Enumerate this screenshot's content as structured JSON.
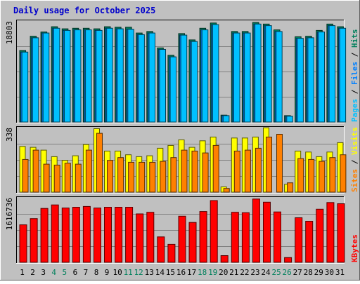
{
  "title": "Daily usage for October 2025",
  "colors": {
    "background": "#c0c0c0",
    "title": "#0000cc",
    "hits": "#00805c",
    "files": "#0080ff",
    "pages": "#00c0ff",
    "visits": "#ffff00",
    "sites": "#ff8000",
    "kbytes": "#ff0000",
    "weekend_label": "#00805c",
    "weekday_label": "#000000",
    "slash": "#000000"
  },
  "chart_data": [
    {
      "type": "bar",
      "panel": "hits-files-pages",
      "y_max_label": "18803",
      "ylim": [
        0,
        18803
      ],
      "legend": [
        "Pages",
        "Files",
        "Hits"
      ],
      "categories": [
        "1",
        "2",
        "3",
        "4",
        "5",
        "6",
        "7",
        "8",
        "9",
        "10",
        "11",
        "12",
        "13",
        "14",
        "15",
        "16",
        "17",
        "18",
        "19",
        "20",
        "21",
        "22",
        "23",
        "24",
        "25",
        "26",
        "27",
        "28",
        "29",
        "30",
        "31"
      ],
      "series": [
        {
          "name": "Hits",
          "values": [
            13500,
            16200,
            17000,
            18000,
            17600,
            17700,
            17700,
            17600,
            18000,
            17900,
            17900,
            16800,
            17100,
            14000,
            12600,
            16700,
            15500,
            17700,
            18700,
            1300,
            17100,
            17100,
            18800,
            18500,
            17400,
            1200,
            16100,
            16200,
            17300,
            18500,
            18000
          ]
        },
        {
          "name": "Files",
          "values": [
            13200,
            15900,
            16800,
            17700,
            17300,
            17400,
            17400,
            17300,
            17700,
            17600,
            17500,
            16500,
            16800,
            13700,
            12300,
            16400,
            15200,
            17400,
            18400,
            1200,
            16800,
            16800,
            18500,
            18200,
            17100,
            1100,
            15800,
            15900,
            17000,
            18200,
            17700
          ]
        },
        {
          "name": "Pages",
          "values": [
            13200,
            15900,
            16800,
            17700,
            17300,
            17400,
            17400,
            17300,
            17700,
            17600,
            17500,
            16500,
            16800,
            13700,
            12300,
            16400,
            15200,
            17400,
            18400,
            1200,
            16800,
            16800,
            18500,
            18200,
            17100,
            1100,
            15800,
            15900,
            17000,
            18200,
            17700
          ]
        }
      ]
    },
    {
      "type": "bar",
      "panel": "visits-sites",
      "y_max_label": "338",
      "ylim": [
        0,
        338
      ],
      "legend": [
        "Sites",
        "Visits"
      ],
      "categories": [
        "1",
        "2",
        "3",
        "4",
        "5",
        "6",
        "7",
        "8",
        "9",
        "10",
        "11",
        "12",
        "13",
        "14",
        "15",
        "16",
        "17",
        "18",
        "19",
        "20",
        "21",
        "22",
        "23",
        "24",
        "25",
        "26",
        "27",
        "28",
        "29",
        "30",
        "31"
      ],
      "series": [
        {
          "name": "Visits",
          "values": [
            245,
            240,
            225,
            190,
            170,
            195,
            255,
            340,
            220,
            220,
            200,
            190,
            195,
            235,
            250,
            280,
            240,
            275,
            295,
            28,
            290,
            290,
            295,
            345,
            0,
            42,
            220,
            215,
            190,
            215,
            265
          ]
        },
        {
          "name": "Sites",
          "values": [
            175,
            225,
            150,
            145,
            155,
            150,
            225,
            315,
            170,
            185,
            160,
            160,
            160,
            165,
            185,
            225,
            220,
            210,
            250,
            20,
            220,
            225,
            235,
            295,
            310,
            50,
            180,
            175,
            165,
            185,
            200
          ]
        }
      ]
    },
    {
      "type": "bar",
      "panel": "kbytes",
      "y_max_label": "1616736",
      "ylim": [
        0,
        1616736
      ],
      "legend": [
        "KBytes"
      ],
      "categories": [
        "1",
        "2",
        "3",
        "4",
        "5",
        "6",
        "7",
        "8",
        "9",
        "10",
        "11",
        "12",
        "13",
        "14",
        "15",
        "16",
        "17",
        "18",
        "19",
        "20",
        "21",
        "22",
        "23",
        "24",
        "25",
        "26",
        "27",
        "28",
        "29",
        "30",
        "31"
      ],
      "series": [
        {
          "name": "KBytes",
          "values": [
            960000,
            1120000,
            1380000,
            1470000,
            1390000,
            1410000,
            1430000,
            1390000,
            1410000,
            1410000,
            1410000,
            1240000,
            1280000,
            650000,
            460000,
            1180000,
            1020000,
            1300000,
            1580000,
            170000,
            1280000,
            1270000,
            1620000,
            1540000,
            1290000,
            120000,
            1140000,
            1050000,
            1360000,
            1530000,
            1500000
          ]
        }
      ]
    }
  ],
  "x_axis": {
    "labels": [
      "1",
      "2",
      "3",
      "4",
      "5",
      "6",
      "7",
      "8",
      "9",
      "10",
      "11",
      "12",
      "13",
      "14",
      "15",
      "16",
      "17",
      "18",
      "19",
      "20",
      "21",
      "22",
      "23",
      "24",
      "25",
      "26",
      "27",
      "28",
      "29",
      "30",
      "31"
    ],
    "weekend": [
      4,
      5,
      11,
      12,
      18,
      19,
      25,
      26
    ]
  }
}
